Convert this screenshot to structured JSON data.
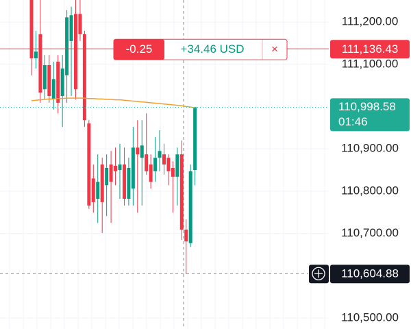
{
  "chart_data": {
    "type": "candlestick",
    "ylim": [
      110474,
      111252
    ],
    "yticks": [
      {
        "value": 111200,
        "label": "111,200.00"
      },
      {
        "value": 111100,
        "label": "111,100.00"
      },
      {
        "value": 110900,
        "label": "110,900.00"
      },
      {
        "value": 110800,
        "label": "110,800.00"
      },
      {
        "value": 110700,
        "label": "110,700.00"
      },
      {
        "value": 110500,
        "label": "110,500.00"
      }
    ],
    "up_color": "#089981",
    "down_color": "#f23645",
    "series": [
      {
        "open": [
          111252,
          111114,
          111171,
          111041,
          111098,
          111017,
          111106,
          111025,
          111074,
          111155,
          111219,
          111219,
          111171,
          110960,
          110830,
          110782,
          110863,
          110814,
          110863,
          110860,
          110850,
          110863,
          110782,
          110806,
          110903,
          110879,
          110887,
          110863,
          110847,
          110879,
          110887,
          110879,
          110855,
          110834,
          110887,
          110709,
          110677,
          110850
        ],
        "high": [
          111252,
          111179,
          111252,
          111122,
          111122,
          111106,
          111122,
          111122,
          111228,
          111236,
          111252,
          111252,
          111179,
          110968,
          110863,
          110887,
          110879,
          110887,
          110895,
          110903,
          110912,
          110903,
          110879,
          110952,
          110968,
          110968,
          110984,
          110887,
          110928,
          110944,
          110912,
          110887,
          110871,
          110903,
          110920,
          110733,
          110863,
          110998.58
        ],
        "low": [
          111074,
          111090,
          111009,
          111017,
          111009,
          110993,
          110984,
          110952,
          111009,
          111025,
          111017,
          111155,
          110952,
          110758,
          110749,
          110725,
          110701,
          110741,
          110725,
          110814,
          110782,
          110766,
          110766,
          110766,
          110749,
          110766,
          110839,
          110806,
          110822,
          110847,
          110839,
          110814,
          110749,
          110766,
          110685,
          110604,
          110668,
          110814
        ],
        "close": [
          111114,
          111130,
          111033,
          111098,
          111025,
          111065,
          111009,
          111090,
          111211,
          111216,
          111041,
          111171,
          110968,
          110766,
          110774,
          110822,
          110774,
          110855,
          110822,
          110847,
          110863,
          110782,
          110855,
          110903,
          110887,
          110908,
          110847,
          110822,
          110879,
          110895,
          110863,
          110847,
          110834,
          110887,
          110709,
          110681,
          110847,
          110998.58
        ]
      }
    ],
    "moving_average": {
      "color": "#f0a030",
      "values": [
        111014,
        111015,
        111016,
        111017,
        111018,
        111018,
        111019,
        111019,
        111020,
        111020,
        111020,
        111020,
        111020,
        111019,
        111019,
        111018,
        111018,
        111017,
        111017,
        111016,
        111016,
        111015,
        111014,
        111013,
        111012,
        111011,
        111010,
        111009,
        111008,
        111007,
        111006,
        111005,
        111004,
        111003,
        111002,
        111000,
        110999,
        110997
      ]
    },
    "position": {
      "value": 111136.43,
      "label": "111,136.43",
      "color": "#f23645",
      "pnl": "-0.25",
      "pnl_usd": "+34.46 USD",
      "close_icon": "×"
    },
    "last_price": {
      "value": 110998.58,
      "label": "110,998.58",
      "countdown": "01:46",
      "color": "#22ab94"
    },
    "crosshair": {
      "value": 110604.88,
      "label": "110,604.88"
    }
  }
}
